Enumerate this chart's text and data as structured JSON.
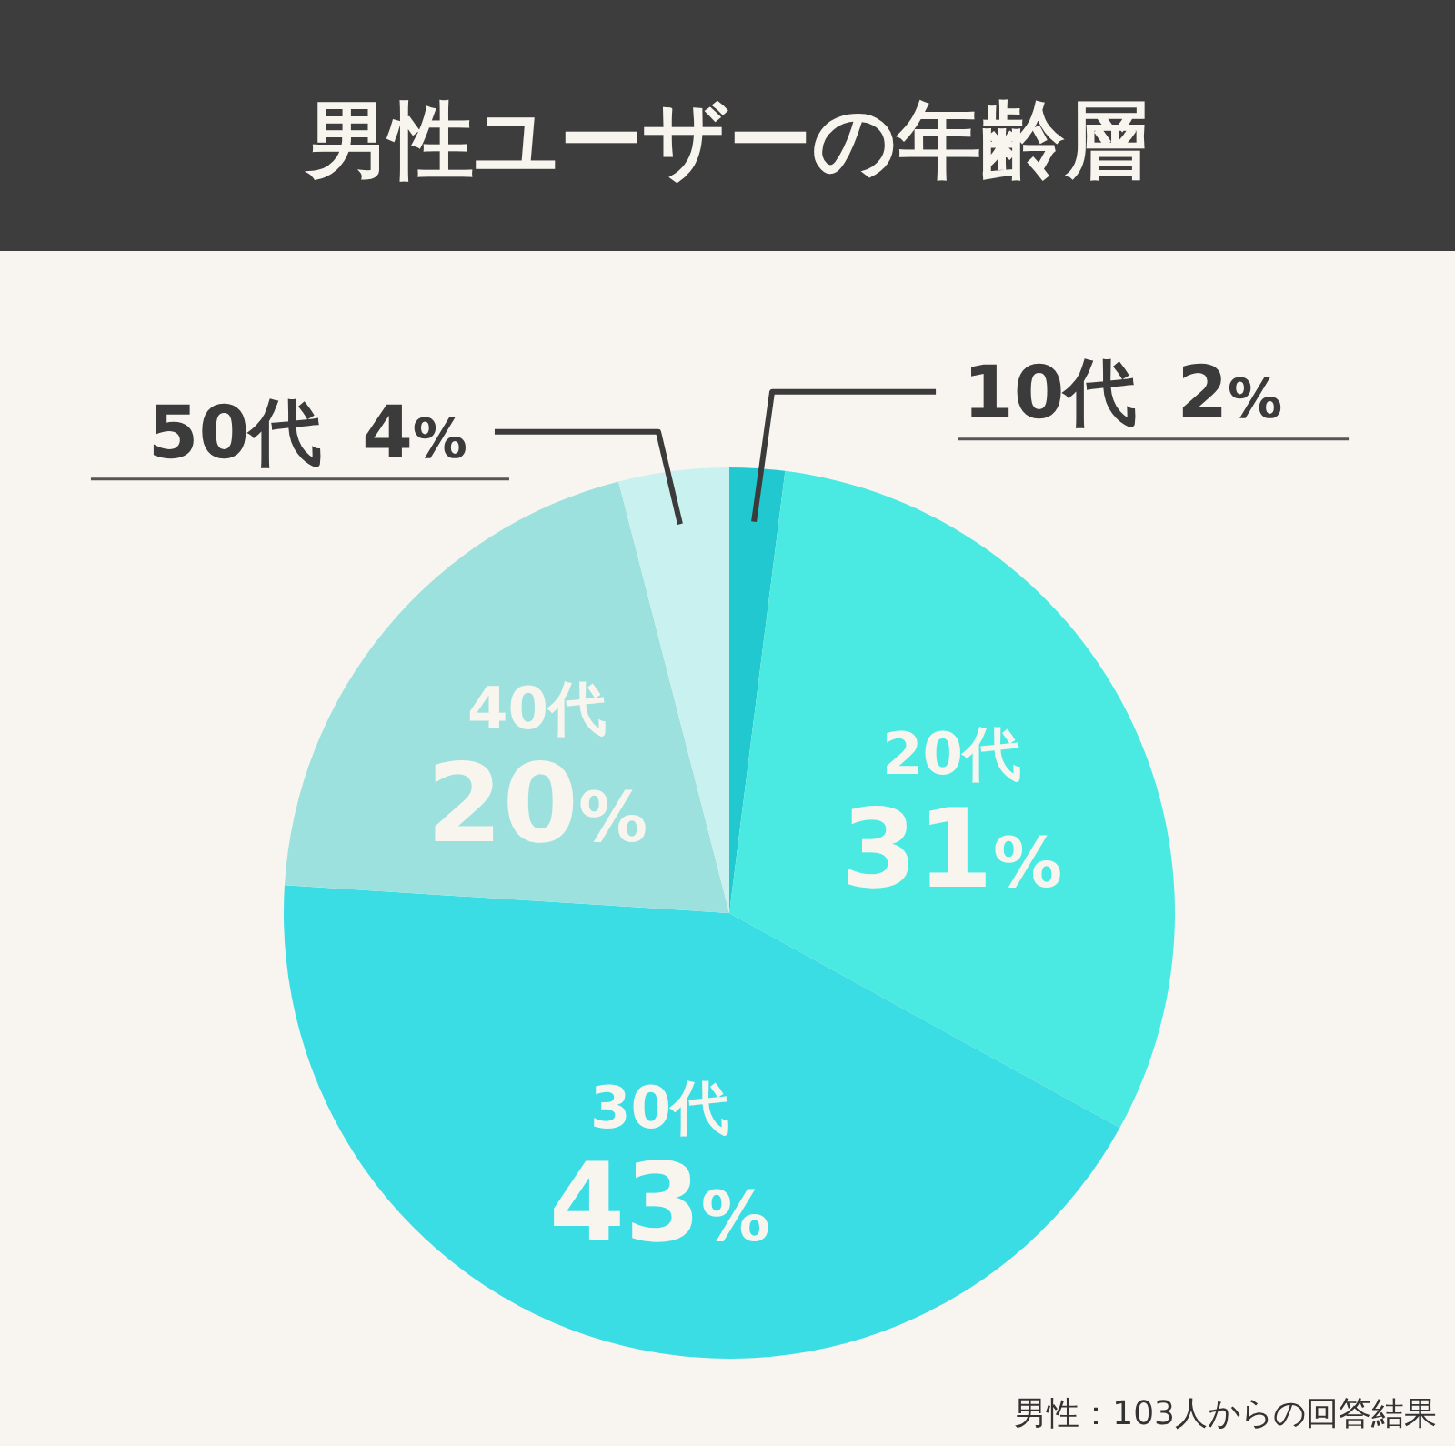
{
  "chart_data": {
    "type": "pie",
    "title": "男性ユーザーの年齢層",
    "categories": [
      "10代",
      "20代",
      "30代",
      "40代",
      "50代"
    ],
    "values": [
      2,
      31,
      43,
      20,
      4
    ],
    "colors": [
      "#22c8cf",
      "#4aeae2",
      "#3bdde5",
      "#9ce1dd",
      "#c9f1ef"
    ],
    "value_labels": [
      "2%",
      "31%",
      "43%",
      "20%",
      "4%"
    ],
    "annotations": [
      "男性：103人からの回答結果"
    ]
  }
}
